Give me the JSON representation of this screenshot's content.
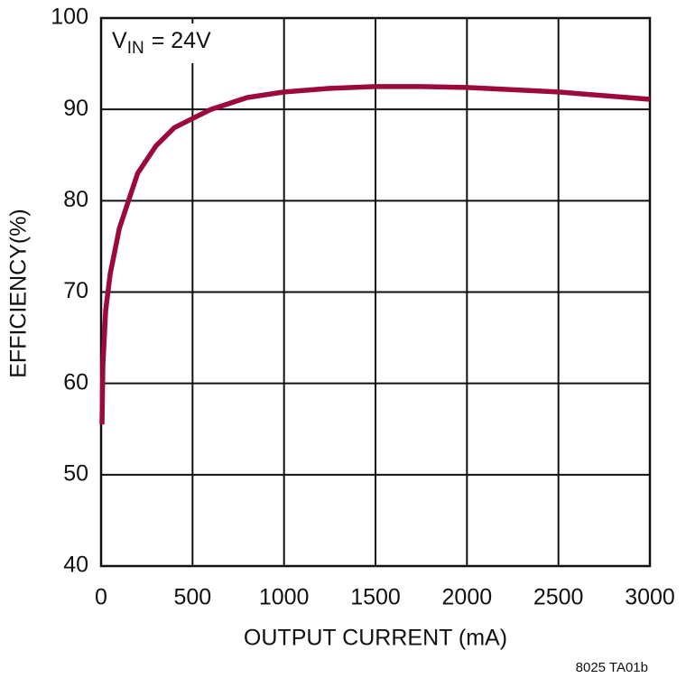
{
  "chart_data": {
    "type": "line",
    "annotation": {
      "text": "V",
      "subscript": "IN",
      "suffix": "= 24V"
    },
    "xlabel": "OUTPUT CURRENT (mA)",
    "ylabel": "EFFICIENCY(%)",
    "footnote": "8025 TA01b",
    "x": [
      5,
      10,
      25,
      50,
      100,
      150,
      200,
      300,
      400,
      500,
      600,
      800,
      1000,
      1250,
      1500,
      1750,
      2000,
      2500,
      3000
    ],
    "values": [
      55.5,
      62,
      68,
      72,
      77,
      80,
      83,
      86,
      88,
      89,
      90,
      91.3,
      91.9,
      92.3,
      92.5,
      92.5,
      92.4,
      91.9,
      91.1
    ],
    "color": "#9b0a3a",
    "xlim": [
      0,
      3000
    ],
    "xticks": [
      0,
      500,
      1000,
      1500,
      2000,
      2500,
      3000
    ],
    "ylim": [
      40,
      100
    ],
    "yticks": [
      40,
      50,
      60,
      70,
      80,
      90,
      100
    ],
    "grid": true
  }
}
